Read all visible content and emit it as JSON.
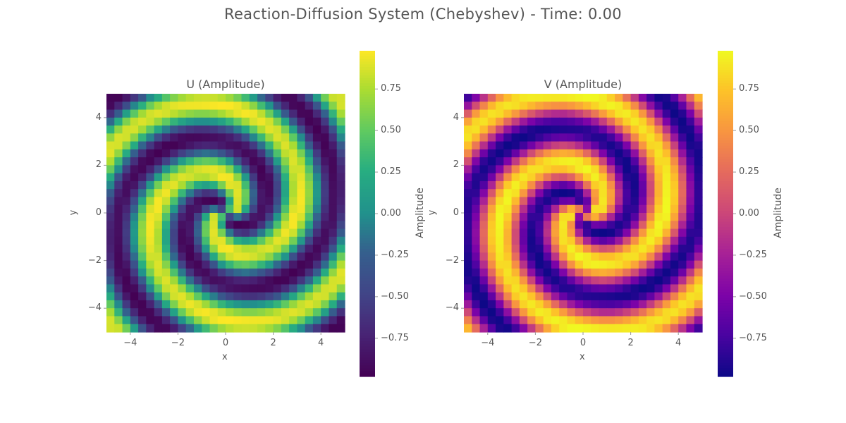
{
  "title": "Reaction-Diffusion System (Chebyshev) - Time: 0.00",
  "chart_data": [
    {
      "type": "heatmap",
      "title": "U (Amplitude)",
      "xlabel": "x",
      "ylabel": "y",
      "xlim": [
        -5,
        5
      ],
      "ylim": [
        -5,
        5
      ],
      "grid_size": 30,
      "x_ticks": [
        "−4",
        "−2",
        "0",
        "2",
        "4"
      ],
      "y_ticks": [
        "4",
        "2",
        "0",
        "−2",
        "−4"
      ],
      "colormap": "viridis",
      "value_range": [
        -1,
        1
      ],
      "pattern": "two-armed spiral centered near origin, phase 0",
      "colorbar": {
        "label": "Amplitude",
        "ticks": [
          "0.75",
          "0.50",
          "0.25",
          "0.00",
          "−0.25",
          "−0.50",
          "−0.75"
        ],
        "tick_values": [
          0.75,
          0.5,
          0.25,
          0.0,
          -0.25,
          -0.5,
          -0.75
        ]
      }
    },
    {
      "type": "heatmap",
      "title": "V (Amplitude)",
      "xlabel": "x",
      "ylabel": "y",
      "xlim": [
        -5,
        5
      ],
      "ylim": [
        -5,
        5
      ],
      "grid_size": 30,
      "x_ticks": [
        "−4",
        "−2",
        "0",
        "2",
        "4"
      ],
      "y_ticks": [
        "4",
        "2",
        "0",
        "−2",
        "−4"
      ],
      "colormap": "plasma",
      "value_range": [
        -1,
        1
      ],
      "pattern": "two-armed spiral centered near origin, phase shifted",
      "colorbar": {
        "label": "Amplitude",
        "ticks": [
          "0.75",
          "0.50",
          "0.25",
          "0.00",
          "−0.25",
          "−0.50",
          "−0.75"
        ],
        "tick_values": [
          0.75,
          0.5,
          0.25,
          0.0,
          -0.25,
          -0.5,
          -0.75
        ]
      }
    }
  ]
}
